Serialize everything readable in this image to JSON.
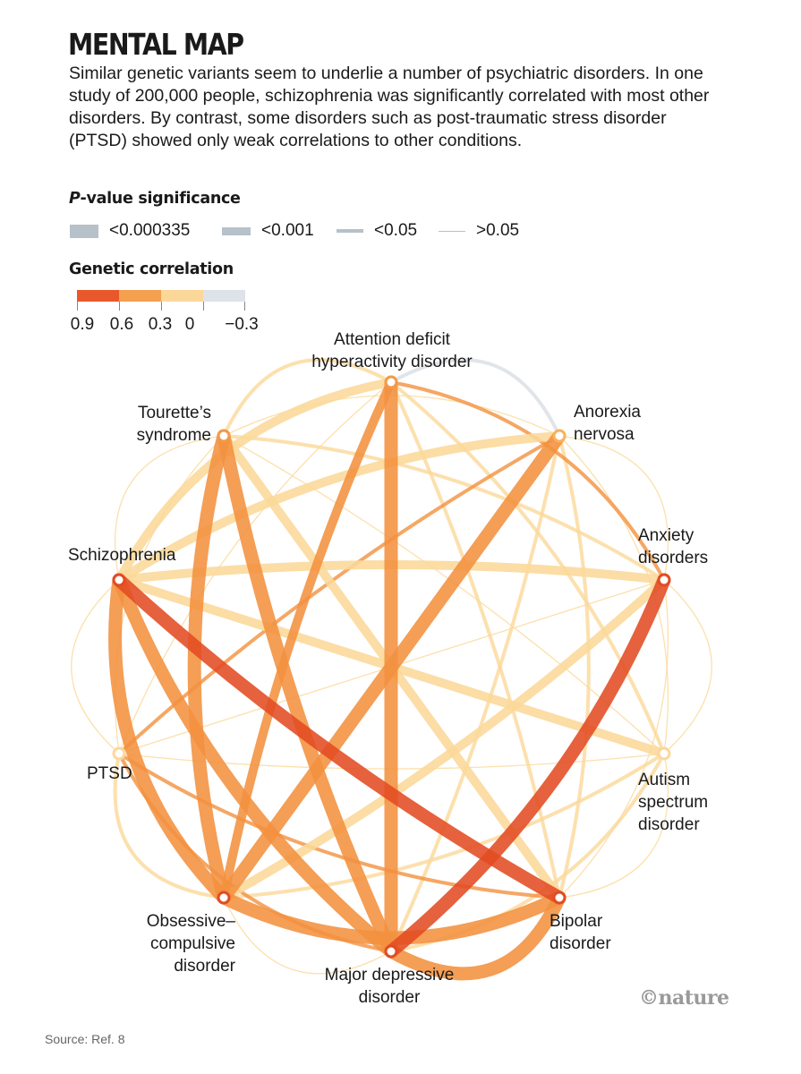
{
  "title": "MENTAL MAP",
  "intro": "Similar genetic variants seem to underlie a number of psychiatric disorders. In one study of 200,000 people, schizophrenia was significantly correlated with most other disorders. By contrast, some disorders such as post-traumatic stress disorder (PTSD) showed only weak correlations to other conditions.",
  "legend": {
    "significance_title_em": "P",
    "significance_title_rest": "-value significance",
    "significance_levels": [
      {
        "label": "<0.000335",
        "weight": 4
      },
      {
        "label": "<0.001",
        "weight": 3
      },
      {
        "label": "<0.05",
        "weight": 2
      },
      {
        "label": ">0.05",
        "weight": 1
      }
    ],
    "correlation_title": "Genetic correlation",
    "correlation_scale": [
      {
        "label": "0.9",
        "color": "#e8582a"
      },
      {
        "label": "0.6",
        "color": "#f4a04f"
      },
      {
        "label": "0.3",
        "color": "#fbd899"
      },
      {
        "label": "0",
        "color": "#dde3e8"
      },
      {
        "label": "−0.3"
      }
    ]
  },
  "nodes": [
    {
      "id": "adhd",
      "label": "Attention deficit\nhyperactivity disorder",
      "color": "#f29a4a"
    },
    {
      "id": "anorexia",
      "label": "Anorexia\nnervosa",
      "color": "#f6b45e"
    },
    {
      "id": "anxiety",
      "label": "Anxiety\ndisorders",
      "color": "#e34b22"
    },
    {
      "id": "autism",
      "label": "Autism\nspectrum\ndisorder",
      "color": "#fbd899"
    },
    {
      "id": "bipolar",
      "label": "Bipolar\ndisorder",
      "color": "#e34b22"
    },
    {
      "id": "mdd",
      "label": "Major depressive\ndisorder",
      "color": "#e34b22"
    },
    {
      "id": "ocd",
      "label": "Obsessive–\ncompulsive\ndisorder",
      "color": "#e34b22"
    },
    {
      "id": "ptsd",
      "label": "PTSD",
      "color": "#fbd899"
    },
    {
      "id": "schizophrenia",
      "label": "Schizophrenia",
      "color": "#e34b22"
    },
    {
      "id": "tourette",
      "label": "Tourette’s\nsyndrome",
      "color": "#f29a4a"
    }
  ],
  "edges": [
    {
      "a": "schizophrenia",
      "b": "bipolar",
      "r": 0.7,
      "p": "<0.000335"
    },
    {
      "a": "mdd",
      "b": "anxiety",
      "r": 0.8,
      "p": "<0.000335"
    },
    {
      "a": "adhd",
      "b": "mdd",
      "r": 0.5,
      "p": "<0.000335"
    },
    {
      "a": "schizophrenia",
      "b": "ocd",
      "r": 0.4,
      "p": "<0.000335"
    },
    {
      "a": "schizophrenia",
      "b": "mdd",
      "r": 0.4,
      "p": "<0.000335"
    },
    {
      "a": "tourette",
      "b": "mdd",
      "r": 0.4,
      "p": "<0.000335"
    },
    {
      "a": "ocd",
      "b": "bipolar",
      "r": 0.4,
      "p": "<0.000335"
    },
    {
      "a": "anorexia",
      "b": "ocd",
      "r": 0.5,
      "p": "<0.000335"
    },
    {
      "a": "mdd",
      "b": "bipolar",
      "r": 0.4,
      "p": "<0.000335"
    },
    {
      "a": "adhd",
      "b": "schizophrenia",
      "r": 0.2,
      "p": "<0.001"
    },
    {
      "a": "tourette",
      "b": "ocd",
      "r": 0.4,
      "p": "<0.000335"
    },
    {
      "a": "adhd",
      "b": "ocd",
      "r": 0.4,
      "p": "<0.001"
    },
    {
      "a": "anxiety",
      "b": "ocd",
      "r": 0.3,
      "p": "<0.001"
    },
    {
      "a": "anxiety",
      "b": "schizophrenia",
      "r": 0.2,
      "p": "<0.001"
    },
    {
      "a": "autism",
      "b": "schizophrenia",
      "r": 0.2,
      "p": "<0.001"
    },
    {
      "a": "autism",
      "b": "ocd",
      "r": 0.2,
      "p": "<0.05"
    },
    {
      "a": "autism",
      "b": "adhd",
      "r": 0.2,
      "p": "<0.05"
    },
    {
      "a": "autism",
      "b": "mdd",
      "r": 0.2,
      "p": "<0.05"
    },
    {
      "a": "tourette",
      "b": "bipolar",
      "r": 0.2,
      "p": "<0.001"
    },
    {
      "a": "tourette",
      "b": "anxiety",
      "r": 0.2,
      "p": "<0.05"
    },
    {
      "a": "anorexia",
      "b": "schizophrenia",
      "r": 0.2,
      "p": "<0.001"
    },
    {
      "a": "anorexia",
      "b": "mdd",
      "r": 0.2,
      "p": "<0.05"
    },
    {
      "a": "anorexia",
      "b": "bipolar",
      "r": 0.2,
      "p": "<0.05"
    },
    {
      "a": "adhd",
      "b": "tourette",
      "r": 0.2,
      "p": "<0.05"
    },
    {
      "a": "adhd",
      "b": "anxiety",
      "r": 0.6,
      "p": "<0.05"
    },
    {
      "a": "adhd",
      "b": "anorexia",
      "r": -0.1,
      "p": "<0.05"
    },
    {
      "a": "adhd",
      "b": "bipolar",
      "r": 0.2,
      "p": "<0.05"
    },
    {
      "a": "ptsd",
      "b": "mdd",
      "r": 0.6,
      "p": "<0.05"
    },
    {
      "a": "ptsd",
      "b": "anorexia",
      "r": 0.5,
      "p": "<0.05"
    },
    {
      "a": "ptsd",
      "b": "ocd",
      "r": 0.2,
      "p": "<0.05"
    },
    {
      "a": "ptsd",
      "b": "bipolar",
      "r": 0.6,
      "p": "<0.05"
    },
    {
      "a": "ptsd",
      "b": "adhd",
      "r": 0.2,
      "p": ">0.05"
    },
    {
      "a": "ptsd",
      "b": "tourette",
      "r": 0.1,
      "p": ">0.05"
    },
    {
      "a": "ptsd",
      "b": "schizophrenia",
      "r": 0.2,
      "p": ">0.05"
    },
    {
      "a": "ptsd",
      "b": "anxiety",
      "r": 0.2,
      "p": ">0.05"
    },
    {
      "a": "ptsd",
      "b": "autism",
      "r": 0.2,
      "p": ">0.05"
    },
    {
      "a": "tourette",
      "b": "schizophrenia",
      "r": 0.2,
      "p": ">0.05"
    },
    {
      "a": "tourette",
      "b": "anorexia",
      "r": 0.2,
      "p": ">0.05"
    },
    {
      "a": "tourette",
      "b": "autism",
      "r": 0.2,
      "p": ">0.05"
    },
    {
      "a": "anorexia",
      "b": "anxiety",
      "r": 0.2,
      "p": ">0.05"
    },
    {
      "a": "anorexia",
      "b": "autism",
      "r": 0.2,
      "p": ">0.05"
    },
    {
      "a": "anxiety",
      "b": "autism",
      "r": 0.2,
      "p": ">0.05"
    },
    {
      "a": "anxiety",
      "b": "bipolar",
      "r": 0.2,
      "p": ">0.05"
    },
    {
      "a": "autism",
      "b": "bipolar",
      "r": 0.2,
      "p": ">0.05"
    },
    {
      "a": "mdd",
      "b": "ocd",
      "r": 0.2,
      "p": ">0.05"
    }
  ],
  "credit": "©nature",
  "source": "Source: Ref. 8"
}
